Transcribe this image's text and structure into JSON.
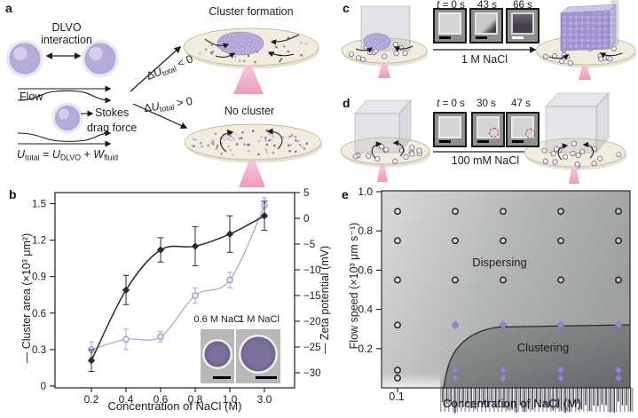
{
  "colors": {
    "particle_purple": "#b5aad8",
    "series_purple": "#a694d2",
    "series_black": "#2b2b2b",
    "beam_pink": "#ec8fb6",
    "disk_cream": "#f1ecdd"
  },
  "panels": {
    "a": "a",
    "b": "b",
    "c": "c",
    "d": "d",
    "e": "e"
  },
  "panel_a": {
    "dlvo_line1": "DLVO",
    "dlvo_line2": "interaction",
    "flow_label": "Flow",
    "stokes_label_1": "Stokes",
    "stokes_label_2": "drag force",
    "equation": [
      [
        "i",
        "U"
      ],
      [
        "sub",
        "total"
      ],
      [
        "n",
        " = "
      ],
      [
        "i",
        "U"
      ],
      [
        "sub",
        "DLVO"
      ],
      [
        "n",
        " + "
      ],
      [
        "i",
        "W"
      ],
      [
        "sub",
        "fluid"
      ]
    ],
    "delta_neg": [
      [
        "n",
        "Δ"
      ],
      [
        "i",
        "U"
      ],
      [
        "sub",
        "total"
      ],
      [
        "n",
        " < 0"
      ]
    ],
    "delta_pos": [
      [
        "n",
        "Δ"
      ],
      [
        "i",
        "U"
      ],
      [
        "sub",
        "total"
      ],
      [
        "n",
        " > 0"
      ]
    ],
    "cluster_formation_label": "Cluster formation",
    "no_cluster_label": "No cluster"
  },
  "panel_c": {
    "times": [
      [
        [
          "i",
          "t"
        ],
        [
          "n",
          " = 0 s"
        ]
      ],
      [
        [
          "n",
          "43 s"
        ]
      ],
      [
        [
          "n",
          "66 s"
        ]
      ]
    ],
    "salt_label": "1 M NaCl"
  },
  "panel_d": {
    "times": [
      [
        [
          "i",
          "t"
        ],
        [
          "n",
          " = 0 s"
        ]
      ],
      [
        [
          "n",
          "30 s"
        ]
      ],
      [
        [
          "n",
          "47 s"
        ]
      ]
    ],
    "salt_label": "100 mM NaCl"
  },
  "chart_data": [
    {
      "type": "line",
      "panel": "b",
      "xlabel": "Concentration of NaCl (M)",
      "x_categories": [
        "0.2",
        "0.4",
        "0.6",
        "0.8",
        "1.0",
        "3.0"
      ],
      "left_axis": {
        "label": "— Cluster area (×10³ μm²)",
        "ticks": [
          "0",
          "0.3",
          "0.6",
          "0.9",
          "1.2",
          "1.5"
        ],
        "range": [
          0,
          1.5
        ]
      },
      "right_axis": {
        "label": "— Zeta potential (mV)",
        "ticks": [
          "5",
          "0",
          "-5",
          "-10",
          "-15",
          "-20",
          "-25",
          "-30"
        ],
        "range": [
          -30,
          5
        ]
      },
      "grid": false,
      "series": [
        {
          "name": "Cluster area",
          "axis": "left",
          "marker": "diamond-filled",
          "values": [
            0.21,
            0.79,
            1.12,
            1.15,
            1.25,
            1.4
          ],
          "errors": [
            0.09,
            0.12,
            0.1,
            0.16,
            0.15,
            0.12
          ]
        },
        {
          "name": "Zeta potential",
          "axis": "right",
          "marker": "circle-open",
          "values": [
            -25.5,
            -23.5,
            -23,
            -15,
            -12,
            2.5
          ],
          "errors": [
            1.5,
            2,
            1,
            1.5,
            1.5,
            1.5
          ]
        }
      ],
      "inset": {
        "labels": [
          "0.6 M NaCl",
          "1 M NaCl"
        ]
      }
    },
    {
      "type": "scatter",
      "panel": "e",
      "xlabel": "Concentration of NaCl (M)",
      "ylabel": "Flow speed (×10³ μm s⁻¹)",
      "x_tick_labels": [
        "0.1"
      ],
      "y_tick_labels": [
        "1.0",
        "0.8",
        "0.6",
        "0.4",
        "0.2"
      ],
      "ylim": [
        0,
        1.0
      ],
      "regions": {
        "upper": "Dispersing",
        "lower": "Clustering"
      },
      "points": {
        "circle_rows_all_columns": [
          0.9,
          0.75,
          0.55
        ],
        "circle_first_column_extra": [
          0.32,
          0.09,
          0.05
        ],
        "diamond_row": 0.32,
        "diamond_pair_rows": [
          0.09,
          0.05
        ]
      },
      "boundary_plateau_flow_speed": 0.32
    }
  ]
}
